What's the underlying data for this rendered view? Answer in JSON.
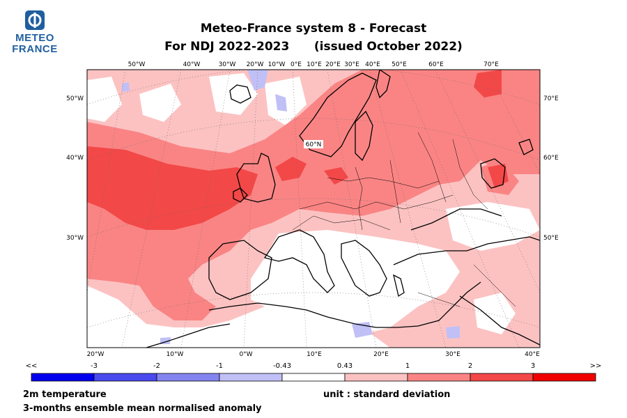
{
  "logo": {
    "line1": "METEO",
    "line2": "FRANCE"
  },
  "title": {
    "line1": "Meteo-France system 8  -  Forecast",
    "line2": "For NDJ 2022-2023      (issued October 2022)"
  },
  "map": {
    "top_lon_labels": [
      "50°W",
      "40°W",
      "30°W",
      "20°W",
      "10°W",
      "0°E",
      "10°E",
      "20°E",
      "30°E",
      "40°E",
      "50°E",
      "60°E",
      "70°E"
    ],
    "bottom_lon_labels": [
      "20°W",
      "10°W",
      "0°W",
      "10°E",
      "20°E",
      "30°E",
      "40°E"
    ],
    "left_lat_labels": [
      "50°W",
      "40°W",
      "30°W"
    ],
    "right_lat_labels": [
      "70°E",
      "60°E",
      "50°E"
    ],
    "inner_label": "60°N"
  },
  "colorbar": {
    "labels": [
      "<<",
      "-3",
      "-2",
      "-1",
      "-0.43",
      "0.43",
      "1",
      "2",
      "3",
      ">>"
    ],
    "colors": [
      "#0000ee",
      "#4a4aee",
      "#8484f0",
      "#c0c0f7",
      "#ffffff",
      "#fcc2c2",
      "#fa8484",
      "#f34848",
      "#f00000"
    ]
  },
  "footer": {
    "variable": "2m temperature",
    "description": "3-months ensemble mean normalised anomaly",
    "unit": "unit : standard deviation"
  }
}
